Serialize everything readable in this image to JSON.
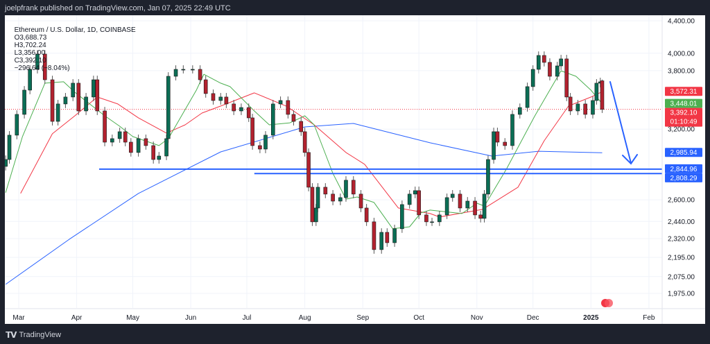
{
  "header": {
    "published": "joelpfrank published on TradingView.com, Jan 07, 2025 22:49 UTC"
  },
  "legend": {
    "symbol": "Ethereum / U.S. Dollar, 1D, COINBASE",
    "open": "O3,688.73",
    "high": "H3,702.24",
    "low": "L3,356.00",
    "close": "C3,392.10",
    "change": "−296.64 (−8.04%)"
  },
  "footer": {
    "brand": "TradingView",
    "logo_text": "TV"
  },
  "chart_data": {
    "type": "candlestick",
    "y_scale": "log",
    "ylim": [
      1940,
      4430
    ],
    "grid": true,
    "y_ticks": [
      "4,400.00",
      "4,000.00",
      "3,800.00",
      "3,200.00",
      "2,600.00",
      "2,440.00",
      "2,320.00",
      "2,195.00",
      "2,075.00",
      "1,975.00"
    ],
    "y_tick_values": [
      4400,
      4000,
      3800,
      3200,
      2600,
      2440,
      2320,
      2195,
      2075,
      1975
    ],
    "x_ticks": [
      {
        "label": "Mar",
        "date": "2024-03-01"
      },
      {
        "label": "Apr",
        "date": "2024-04-01"
      },
      {
        "label": "May",
        "date": "2024-05-01"
      },
      {
        "label": "Jun",
        "date": "2024-06-01"
      },
      {
        "label": "Jul",
        "date": "2024-07-01"
      },
      {
        "label": "Aug",
        "date": "2024-08-01"
      },
      {
        "label": "Sep",
        "date": "2024-09-01"
      },
      {
        "label": "Oct",
        "date": "2024-10-01"
      },
      {
        "label": "Nov",
        "date": "2024-11-01"
      },
      {
        "label": "Dec",
        "date": "2024-12-01"
      },
      {
        "label": "2025",
        "date": "2025-01-01",
        "bold": true
      },
      {
        "label": "Feb",
        "date": "2025-02-01"
      }
    ],
    "colors": {
      "up": "#0b6e55",
      "down": "#b2222f",
      "ma_green": "#4caf50",
      "ma_red": "#f23645",
      "ma_blue": "#2962ff",
      "hline": "#2962ff"
    },
    "closes": [
      [
        "2024-02-23",
        2927
      ],
      [
        "2024-02-25",
        3144
      ],
      [
        "2024-02-29",
        3342
      ],
      [
        "2024-03-04",
        3589
      ],
      [
        "2024-03-07",
        3815
      ],
      [
        "2024-03-11",
        3990
      ],
      [
        "2024-03-15",
        3700
      ],
      [
        "2024-03-19",
        3274
      ],
      [
        "2024-03-22",
        3446
      ],
      [
        "2024-03-26",
        3517
      ],
      [
        "2024-03-30",
        3663
      ],
      [
        "2024-04-02",
        3376
      ],
      [
        "2024-04-06",
        3517
      ],
      [
        "2024-04-10",
        3700
      ],
      [
        "2024-04-12",
        3376
      ],
      [
        "2024-04-16",
        3080
      ],
      [
        "2024-04-20",
        3112
      ],
      [
        "2024-04-24",
        3176
      ],
      [
        "2024-04-27",
        3080
      ],
      [
        "2024-04-30",
        2988
      ],
      [
        "2024-05-04",
        3112
      ],
      [
        "2024-05-08",
        3049
      ],
      [
        "2024-05-12",
        2927
      ],
      [
        "2024-05-15",
        2957
      ],
      [
        "2024-05-19",
        3112
      ],
      [
        "2024-05-20",
        3738
      ],
      [
        "2024-05-24",
        3815
      ],
      [
        "2024-05-28",
        3815
      ],
      [
        "2024-06-02",
        3815
      ],
      [
        "2024-06-06",
        3700
      ],
      [
        "2024-06-09",
        3553
      ],
      [
        "2024-06-13",
        3481
      ],
      [
        "2024-06-17",
        3517
      ],
      [
        "2024-06-20",
        3446
      ],
      [
        "2024-06-24",
        3376
      ],
      [
        "2024-06-28",
        3410
      ],
      [
        "2024-07-02",
        3308
      ],
      [
        "2024-07-04",
        3049
      ],
      [
        "2024-07-08",
        3018
      ],
      [
        "2024-07-11",
        3144
      ],
      [
        "2024-07-15",
        3446
      ],
      [
        "2024-07-19",
        3481
      ],
      [
        "2024-07-23",
        3342
      ],
      [
        "2024-07-26",
        3274
      ],
      [
        "2024-07-30",
        3176
      ],
      [
        "2024-08-01",
        2988
      ],
      [
        "2024-08-03",
        2698
      ],
      [
        "2024-08-05",
        2437
      ],
      [
        "2024-08-07",
        2538
      ],
      [
        "2024-08-08",
        2698
      ],
      [
        "2024-08-12",
        2644
      ],
      [
        "2024-08-16",
        2590
      ],
      [
        "2024-08-20",
        2617
      ],
      [
        "2024-08-23",
        2754
      ],
      [
        "2024-08-27",
        2644
      ],
      [
        "2024-08-31",
        2538
      ],
      [
        "2024-09-03",
        2437
      ],
      [
        "2024-09-07",
        2246
      ],
      [
        "2024-09-11",
        2363
      ],
      [
        "2024-09-14",
        2292
      ],
      [
        "2024-09-18",
        2388
      ],
      [
        "2024-09-22",
        2564
      ],
      [
        "2024-09-26",
        2644
      ],
      [
        "2024-09-29",
        2671
      ],
      [
        "2024-10-01",
        2487
      ],
      [
        "2024-10-05",
        2437
      ],
      [
        "2024-10-08",
        2437
      ],
      [
        "2024-10-12",
        2487
      ],
      [
        "2024-10-16",
        2617
      ],
      [
        "2024-10-19",
        2644
      ],
      [
        "2024-10-23",
        2538
      ],
      [
        "2024-10-27",
        2590
      ],
      [
        "2024-10-31",
        2487
      ],
      [
        "2024-11-03",
        2462
      ],
      [
        "2024-11-05",
        2644
      ],
      [
        "2024-11-07",
        2927
      ],
      [
        "2024-11-10",
        3176
      ],
      [
        "2024-11-12",
        3080
      ],
      [
        "2024-11-16",
        3049
      ],
      [
        "2024-11-20",
        3342
      ],
      [
        "2024-11-24",
        3410
      ],
      [
        "2024-11-28",
        3626
      ],
      [
        "2024-12-01",
        3815
      ],
      [
        "2024-12-04",
        3974
      ],
      [
        "2024-12-07",
        3894
      ],
      [
        "2024-12-10",
        3738
      ],
      [
        "2024-12-14",
        3854
      ],
      [
        "2024-12-16",
        3934
      ],
      [
        "2024-12-19",
        3517
      ],
      [
        "2024-12-21",
        3376
      ],
      [
        "2024-12-25",
        3446
      ],
      [
        "2024-12-29",
        3342
      ],
      [
        "2025-01-02",
        3481
      ],
      [
        "2025-01-04",
        3663
      ],
      [
        "2025-01-06",
        3678
      ]
    ],
    "last_candle": {
      "date": "2025-01-07",
      "open": 3688.73,
      "high": 3702.24,
      "low": 3356.0,
      "close": 3392.1
    },
    "ma_green": [
      [
        "2024-02-23",
        2655
      ],
      [
        "2024-03-03",
        3131
      ],
      [
        "2024-03-15",
        3663
      ],
      [
        "2024-03-25",
        3678
      ],
      [
        "2024-03-31",
        3567
      ],
      [
        "2024-04-16",
        3328
      ],
      [
        "2024-04-24",
        3228
      ],
      [
        "2024-05-01",
        3131
      ],
      [
        "2024-05-15",
        3049
      ],
      [
        "2024-05-20",
        3112
      ],
      [
        "2024-06-04",
        3589
      ],
      [
        "2024-06-08",
        3760
      ],
      [
        "2024-06-17",
        3663
      ],
      [
        "2024-06-22",
        3626
      ],
      [
        "2024-07-05",
        3376
      ],
      [
        "2024-07-13",
        3241
      ],
      [
        "2024-07-24",
        3260
      ],
      [
        "2024-08-01",
        3328
      ],
      [
        "2024-08-06",
        3241
      ],
      [
        "2024-08-16",
        2810
      ],
      [
        "2024-08-23",
        2606
      ],
      [
        "2024-08-29",
        2622
      ],
      [
        "2024-09-07",
        2580
      ],
      [
        "2024-09-17",
        2388
      ],
      [
        "2024-09-26",
        2402
      ],
      [
        "2024-10-02",
        2502
      ],
      [
        "2024-10-07",
        2523
      ],
      [
        "2024-10-24",
        2497
      ],
      [
        "2024-11-01",
        2574
      ],
      [
        "2024-11-05",
        2553
      ],
      [
        "2024-11-17",
        2851
      ],
      [
        "2024-12-02",
        3328
      ],
      [
        "2024-12-16",
        3799
      ],
      [
        "2024-12-24",
        3738
      ],
      [
        "2025-01-01",
        3589
      ],
      [
        "2025-01-07",
        3448.01
      ]
    ],
    "ma_red": [
      [
        "2024-03-02",
        2649
      ],
      [
        "2024-03-19",
        3157
      ],
      [
        "2024-03-31",
        3328
      ],
      [
        "2024-04-12",
        3517
      ],
      [
        "2024-04-23",
        3446
      ],
      [
        "2024-05-04",
        3308
      ],
      [
        "2024-05-19",
        3163
      ],
      [
        "2024-05-29",
        3241
      ],
      [
        "2024-06-07",
        3355
      ],
      [
        "2024-06-17",
        3425
      ],
      [
        "2024-07-05",
        3560
      ],
      [
        "2024-07-22",
        3425
      ],
      [
        "2024-08-06",
        3241
      ],
      [
        "2024-08-23",
        2988
      ],
      [
        "2024-09-02",
        2886
      ],
      [
        "2024-09-20",
        2538
      ],
      [
        "2024-10-07",
        2497
      ],
      [
        "2024-10-12",
        2472
      ],
      [
        "2024-11-04",
        2528
      ],
      [
        "2024-11-23",
        2698
      ],
      [
        "2024-12-07",
        3093
      ],
      [
        "2024-12-20",
        3425
      ],
      [
        "2025-01-01",
        3517
      ],
      [
        "2025-01-07",
        3572.31
      ]
    ],
    "ma_blue": [
      [
        "2024-02-23",
        2028
      ],
      [
        "2024-03-28",
        2315
      ],
      [
        "2024-05-04",
        2649
      ],
      [
        "2024-06-17",
        2993
      ],
      [
        "2024-08-01",
        3221
      ],
      [
        "2024-08-27",
        3254
      ],
      [
        "2024-10-07",
        3074
      ],
      [
        "2024-11-09",
        2957
      ],
      [
        "2024-12-04",
        2999
      ],
      [
        "2025-01-07",
        2985.94
      ]
    ],
    "hlines": [
      {
        "value": 2844.96,
        "start": "2024-04-13"
      },
      {
        "value": 2808.29,
        "start": "2024-07-05"
      }
    ],
    "price_labels": [
      {
        "text": "3,572.31",
        "value": 3572.31,
        "color": "#f23645"
      },
      {
        "text": "3,448.01",
        "value": 3448.01,
        "color": "#4caf50"
      },
      {
        "text": "3,392.10",
        "value": 3392.1,
        "color": "#f23645",
        "sub": "01:10:49"
      },
      {
        "text": "2,985.94",
        "value": 2985.94,
        "color": "#2962ff"
      },
      {
        "text": "2,844.96",
        "value": 2844.96,
        "color": "#2962ff"
      },
      {
        "text": "2,808.29",
        "value": 2808.29,
        "color": "#2962ff"
      }
    ]
  }
}
